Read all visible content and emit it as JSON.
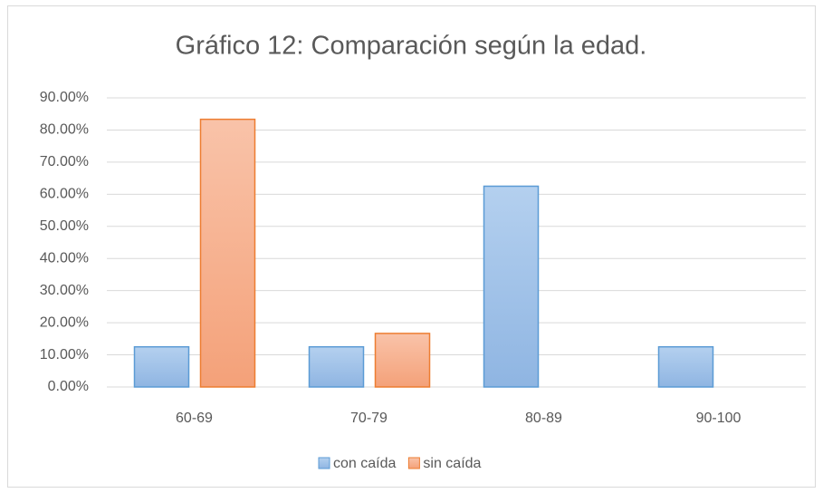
{
  "chart_data": {
    "type": "bar",
    "title": "Gráfico 12: Comparación según la edad.",
    "categories": [
      "60-69",
      "70-79",
      "80-89",
      "90-100"
    ],
    "series": [
      {
        "name": "con caída",
        "color": "#9dc0e8",
        "values": [
          12.5,
          12.5,
          62.5,
          12.5
        ]
      },
      {
        "name": "sin caída",
        "color": "#f6b08e",
        "values": [
          83.33,
          16.67,
          0,
          0
        ]
      }
    ],
    "ylim": [
      0,
      90
    ],
    "yticks": [
      {
        "value": 0,
        "label": "0.00%"
      },
      {
        "value": 10,
        "label": "10.00%"
      },
      {
        "value": 20,
        "label": "20.00%"
      },
      {
        "value": 30,
        "label": "30.00%"
      },
      {
        "value": 40,
        "label": "40.00%"
      },
      {
        "value": 50,
        "label": "50.00%"
      },
      {
        "value": 60,
        "label": "60.00%"
      },
      {
        "value": 70,
        "label": "70.00%"
      },
      {
        "value": 80,
        "label": "80.00%"
      },
      {
        "value": 90,
        "label": "90.00%"
      }
    ],
    "grid": true,
    "legend": "bottom"
  }
}
